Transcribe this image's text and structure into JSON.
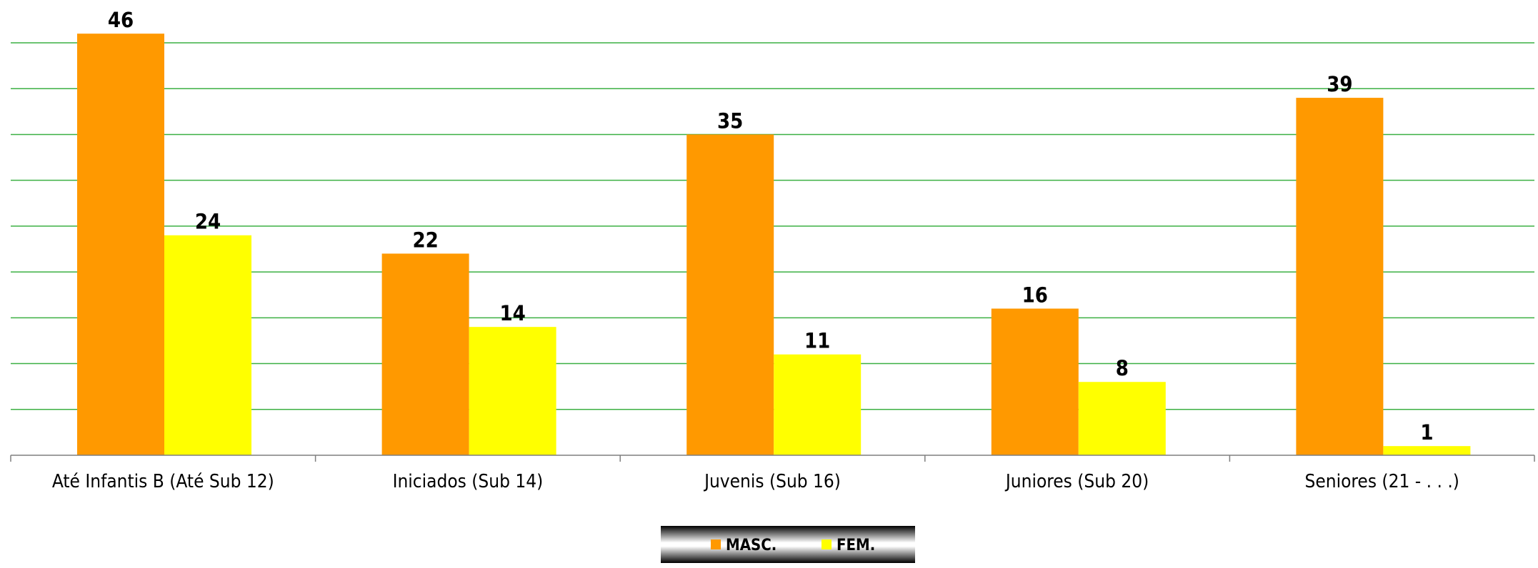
{
  "chart_data": {
    "type": "bar",
    "title": "",
    "xlabel": "",
    "ylabel": "",
    "ylim": [
      0,
      45
    ],
    "grid": true,
    "y_ticks_visible": false,
    "legend_position": "bottom-center",
    "categories": [
      "Até Infantis B (Até Sub 12)",
      "Iniciados (Sub 14)",
      "Juvenis (Sub 16)",
      "Juniores (Sub 20)",
      "Seniores (21 - . . .)"
    ],
    "series": [
      {
        "name": "MASC.",
        "color": "#ff9900",
        "values": [
          46,
          22,
          35,
          16,
          39
        ],
        "labels": [
          "46",
          "22",
          "35",
          "16",
          "39"
        ]
      },
      {
        "name": "FEM.",
        "color": "#ffff00",
        "values": [
          24,
          14,
          11,
          8,
          1
        ],
        "labels": [
          "24",
          "14",
          "11",
          "8",
          "1"
        ]
      }
    ],
    "colors": {
      "gridline": "#3cb043",
      "axis": "#7f7f7f",
      "legend_gradient": [
        "#000000",
        "#ffffff",
        "#000000"
      ]
    }
  }
}
